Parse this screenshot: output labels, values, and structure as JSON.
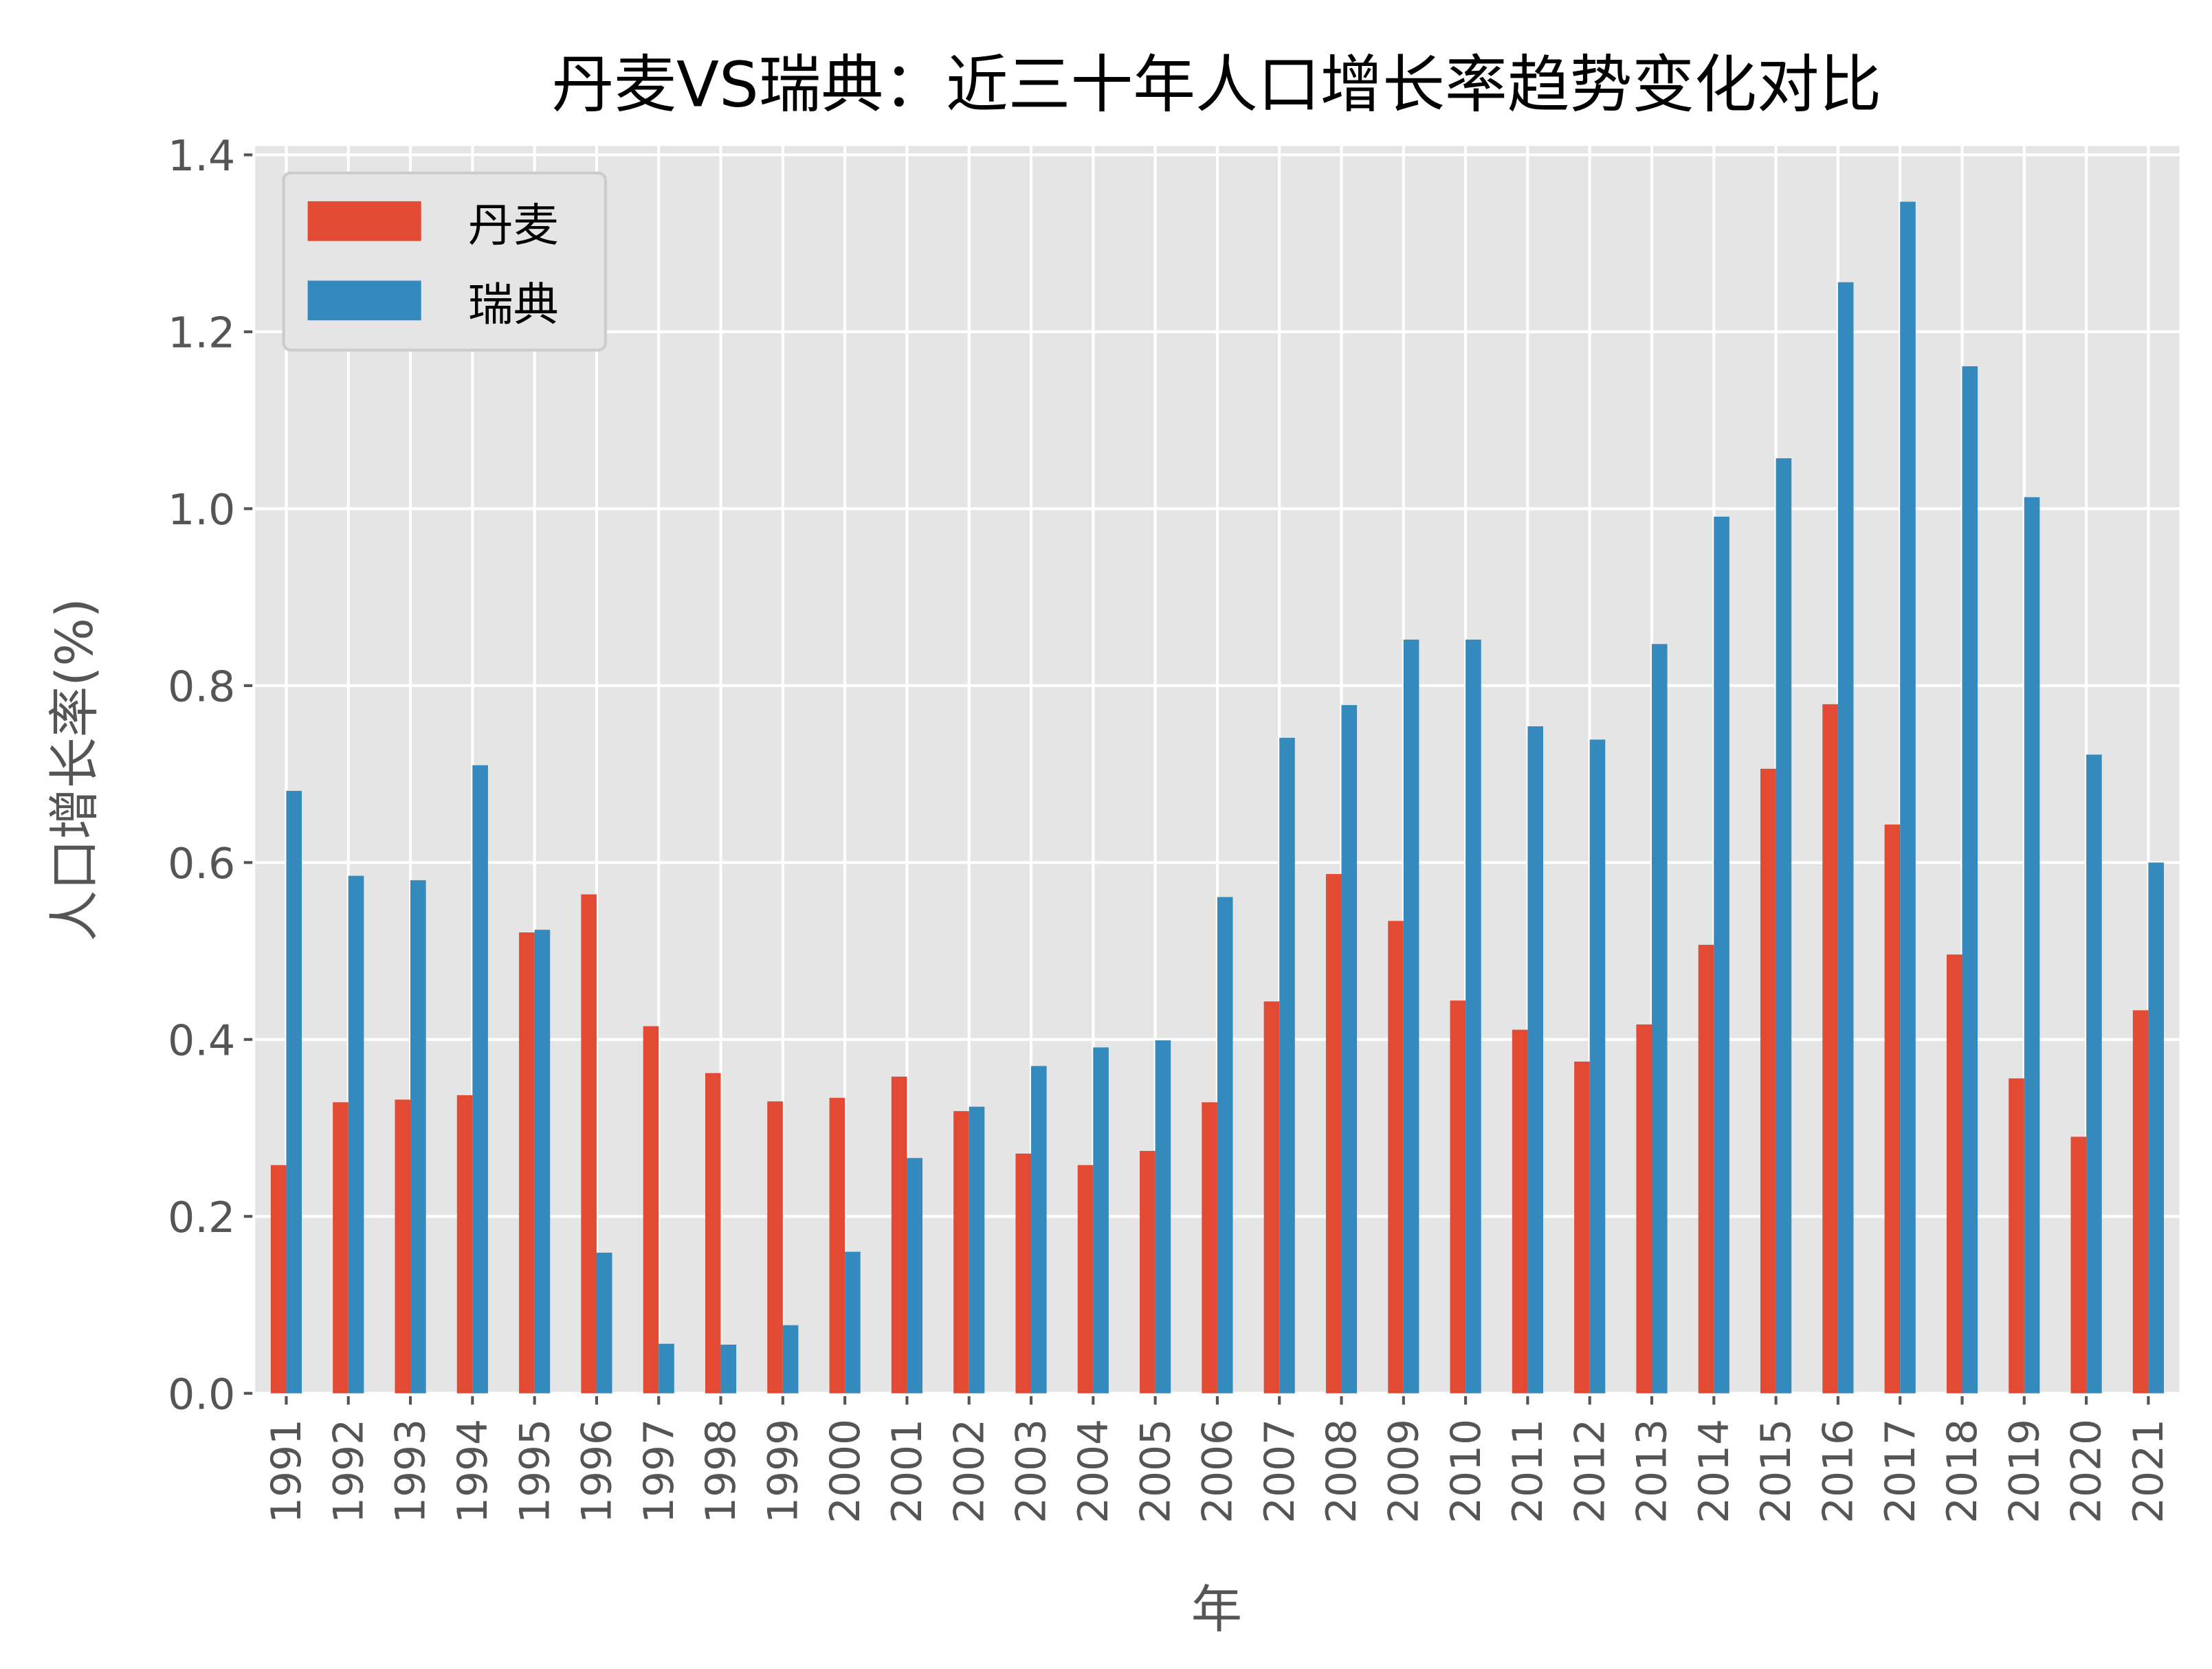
{
  "chart_data": {
    "type": "bar",
    "title": "丹麦VS瑞典：近三十年人口增长率趋势变化对比",
    "xlabel": "年",
    "ylabel": "人口增长率(%)",
    "ylim": [
      0,
      1.41
    ],
    "yticks": [
      "0.0",
      "0.2",
      "0.4",
      "0.6",
      "0.8",
      "1.0",
      "1.2",
      "1.4"
    ],
    "grid": true,
    "legend_position": "top-left",
    "categories": [
      "1991",
      "1992",
      "1993",
      "1994",
      "1995",
      "1996",
      "1997",
      "1998",
      "1999",
      "2000",
      "2001",
      "2002",
      "2003",
      "2004",
      "2005",
      "2006",
      "2007",
      "2008",
      "2009",
      "2010",
      "2011",
      "2012",
      "2013",
      "2014",
      "2015",
      "2016",
      "2017",
      "2018",
      "2019",
      "2020",
      "2021"
    ],
    "series": [
      {
        "name": "丹麦",
        "color": "#E24A33",
        "values": [
          0.258,
          0.329,
          0.332,
          0.337,
          0.521,
          0.564,
          0.415,
          0.362,
          0.33,
          0.334,
          0.358,
          0.319,
          0.271,
          0.258,
          0.274,
          0.329,
          0.443,
          0.587,
          0.534,
          0.444,
          0.411,
          0.375,
          0.417,
          0.507,
          0.706,
          0.779,
          0.643,
          0.496,
          0.356,
          0.29,
          0.433
        ]
      },
      {
        "name": "瑞典",
        "color": "#348ABD",
        "values": [
          0.681,
          0.585,
          0.58,
          0.71,
          0.524,
          0.159,
          0.056,
          0.055,
          0.077,
          0.16,
          0.266,
          0.324,
          0.37,
          0.391,
          0.399,
          0.561,
          0.741,
          0.778,
          0.852,
          0.852,
          0.754,
          0.739,
          0.847,
          0.991,
          1.057,
          1.256,
          1.347,
          1.161,
          1.013,
          0.722,
          0.6
        ]
      }
    ]
  }
}
